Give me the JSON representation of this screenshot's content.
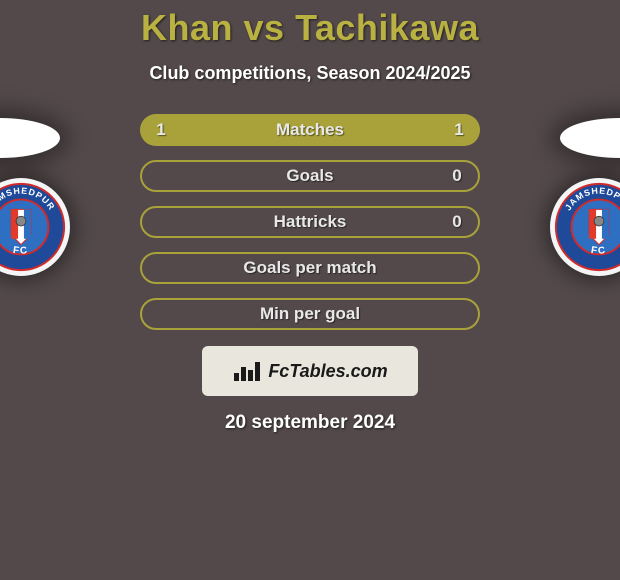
{
  "header": {
    "title": "Khan vs Tachikawa",
    "title_color": "#b9b142",
    "subtitle": "Club competitions, Season 2024/2025",
    "subtitle_color": "#ffffff"
  },
  "background": {
    "color": "#53494a"
  },
  "halo": {
    "color": "#ffffff"
  },
  "badge": {
    "outer_bg": "#f4f5f6",
    "ring_color": "#1f4a9a",
    "ring_stroke": "#d12a2a",
    "inner_fill": "#2e6fc2",
    "text": "JAMSHEDPUR",
    "text_color": "#ffffff",
    "fc_text": "FC",
    "stripe_colors": [
      "#e23a2a",
      "#ffffff",
      "#2e6fc2"
    ]
  },
  "stats": {
    "border_color": "#a9a23a",
    "fill_color": "#a9a23a",
    "label_color": "#e8e8e8",
    "value_color": "#e8e8e8",
    "rows": [
      {
        "label": "Matches",
        "left": "1",
        "right": "1",
        "filled": true
      },
      {
        "label": "Goals",
        "left": "",
        "right": "0",
        "filled": false
      },
      {
        "label": "Hattricks",
        "left": "",
        "right": "0",
        "filled": false
      },
      {
        "label": "Goals per match",
        "left": "",
        "right": "",
        "filled": false
      },
      {
        "label": "Min per goal",
        "left": "",
        "right": "",
        "filled": false
      }
    ]
  },
  "footer": {
    "fctables_text": "FcTables.com",
    "fctables_bg": "#e9e7dd",
    "fctables_color": "#1a1a1a",
    "date": "20 september 2024",
    "date_color": "#ffffff"
  }
}
